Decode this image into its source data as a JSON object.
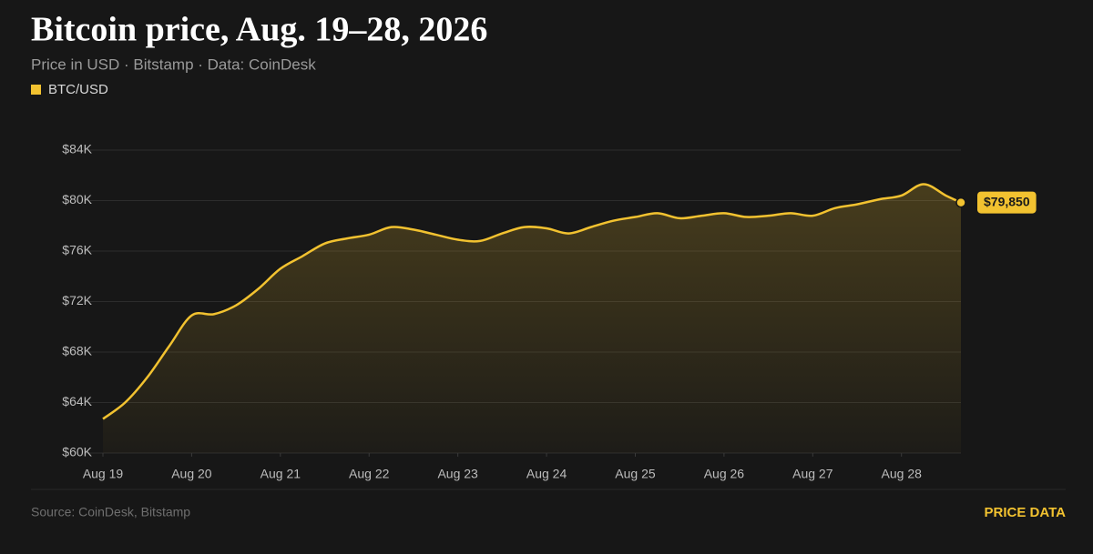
{
  "chart_data": {
    "type": "line",
    "title": "Bitcoin price, Aug. 19–28, 2026",
    "subtitle": "Price in USD · Bitstamp · Data: CoinDesk",
    "source": "Source: CoinDesk, Bitstamp",
    "link": "PRICE DATA",
    "x": [
      0,
      0.25,
      0.5,
      0.75,
      1,
      1.25,
      1.5,
      1.75,
      2,
      2.25,
      2.5,
      2.75,
      3,
      3.25,
      3.5,
      3.75,
      4,
      4.25,
      4.5,
      4.75,
      5,
      5.25,
      5.5,
      5.75,
      6,
      6.25,
      6.5,
      6.75,
      7,
      7.25,
      7.5,
      7.75,
      8,
      8.25,
      8.5,
      8.75,
      9,
      9.25,
      9.5,
      9.67
    ],
    "xlim": [
      0,
      9.67
    ],
    "xticks": [
      {
        "value": 0,
        "label": "Aug 19"
      },
      {
        "value": 1,
        "label": "Aug 20"
      },
      {
        "value": 2,
        "label": "Aug 21"
      },
      {
        "value": 3,
        "label": "Aug 22"
      },
      {
        "value": 4,
        "label": "Aug 23"
      },
      {
        "value": 5,
        "label": "Aug 24"
      },
      {
        "value": 6,
        "label": "Aug 25"
      },
      {
        "value": 7,
        "label": "Aug 26"
      },
      {
        "value": 8,
        "label": "Aug 27"
      },
      {
        "value": 9,
        "label": "Aug 28"
      }
    ],
    "ylim": [
      60000,
      84000
    ],
    "yticks": [
      {
        "value": 60000,
        "label": "$60K"
      },
      {
        "value": 64000,
        "label": "$64K"
      },
      {
        "value": 68000,
        "label": "$68K"
      },
      {
        "value": 72000,
        "label": "$72K"
      },
      {
        "value": 76000,
        "label": "$76K"
      },
      {
        "value": 80000,
        "label": "$80K"
      },
      {
        "value": 84000,
        "label": "$84K"
      }
    ],
    "grid": true,
    "series": [
      {
        "name": "BTC/USD",
        "color": "#f2c230",
        "values": [
          62700,
          64000,
          66000,
          68500,
          70900,
          71000,
          71700,
          73000,
          74600,
          75600,
          76600,
          77000,
          77300,
          77900,
          77700,
          77300,
          76900,
          76800,
          77400,
          77900,
          77800,
          77400,
          77900,
          78400,
          78700,
          79000,
          78600,
          78800,
          79000,
          78700,
          78800,
          79000,
          78800,
          79400,
          79700,
          80100,
          80400,
          81300,
          80400,
          79850
        ],
        "value_labels": [
          null,
          null,
          null,
          null,
          null,
          null,
          null,
          null,
          null,
          null,
          null,
          null,
          null,
          null,
          null,
          null,
          null,
          null,
          null,
          null,
          null,
          null,
          null,
          null,
          null,
          null,
          null,
          null,
          null,
          null,
          null,
          null,
          null,
          null,
          null,
          null,
          null,
          null,
          null,
          "$79,850"
        ]
      }
    ]
  }
}
